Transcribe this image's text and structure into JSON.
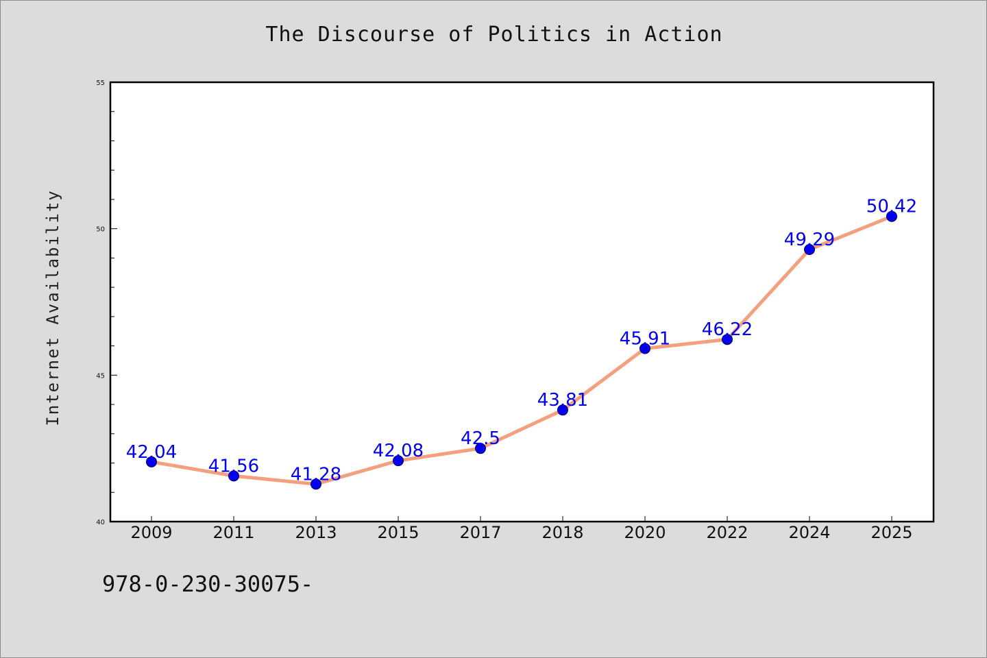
{
  "chart_data": {
    "type": "line",
    "title": "The Discourse of Politics in Action",
    "xlabel": "",
    "ylabel": "Internet Availability",
    "categories": [
      "2009",
      "2011",
      "2013",
      "2015",
      "2017",
      "2018",
      "2020",
      "2022",
      "2024",
      "2025"
    ],
    "series": [
      {
        "values": [
          42.04,
          41.56,
          41.28,
          42.08,
          42.5,
          43.81,
          45.91,
          46.22,
          49.29,
          50.42
        ],
        "data_labels": [
          "42.04",
          "41.56",
          "41.28",
          "42.08",
          "42.5",
          "43.81",
          "45.91",
          "46.22",
          "49.29",
          "50.42"
        ]
      }
    ],
    "ylim": [
      40,
      55
    ],
    "y_major_ticks": [
      40,
      45,
      50,
      55
    ],
    "y_minor_step": 1,
    "grid": false,
    "legend": "none",
    "colors": {
      "line": "#f4a07e",
      "marker": "#0000ee",
      "data_label": "#0000ee",
      "plot_background": "#ffffff",
      "page_background": "#dcdcdc"
    }
  },
  "footer": {
    "code": "978-0-230-30075-"
  }
}
